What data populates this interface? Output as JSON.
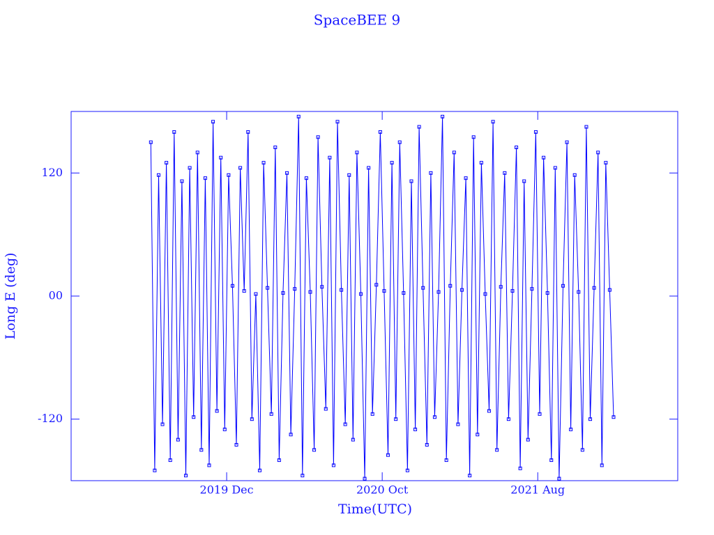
{
  "chart_data": {
    "type": "line",
    "title": "SpaceBEE 9",
    "x_label": "Time(UTC)",
    "y_label": "Long E (deg)",
    "color": "#0000ff",
    "xlim": [
      "2019-02",
      "2022-05"
    ],
    "xticks": [
      {
        "value": "2019-12",
        "label": "2019 Dec"
      },
      {
        "value": "2020-10",
        "label": "2020 Oct"
      },
      {
        "value": "2021-08",
        "label": "2021 Aug"
      }
    ],
    "ylim": [
      -180,
      180
    ],
    "yticks": [
      -120,
      {
        "value": 0,
        "label": "00"
      },
      120
    ],
    "x": [
      "2019-07",
      "2019-07",
      "2019-07",
      "2019-07",
      "2019-08",
      "2019-08",
      "2019-08",
      "2019-08",
      "2019-09",
      "2019-09",
      "2019-09",
      "2019-09",
      "2019-10",
      "2019-10",
      "2019-10",
      "2019-10",
      "2019-11",
      "2019-11",
      "2019-11",
      "2019-11",
      "2019-12",
      "2019-12",
      "2019-12",
      "2019-12",
      "2020-01",
      "2020-01",
      "2020-01",
      "2020-01",
      "2020-02",
      "2020-02",
      "2020-02",
      "2020-02",
      "2020-03",
      "2020-03",
      "2020-03",
      "2020-03",
      "2020-04",
      "2020-04",
      "2020-04",
      "2020-04",
      "2020-05",
      "2020-05",
      "2020-05",
      "2020-05",
      "2020-06",
      "2020-06",
      "2020-06",
      "2020-06",
      "2020-07",
      "2020-07",
      "2020-07",
      "2020-07",
      "2020-08",
      "2020-08",
      "2020-08",
      "2020-08",
      "2020-09",
      "2020-09",
      "2020-09",
      "2020-09",
      "2020-10",
      "2020-10",
      "2020-10",
      "2020-10",
      "2020-11",
      "2020-11",
      "2020-11",
      "2020-11",
      "2020-12",
      "2020-12",
      "2020-12",
      "2020-12",
      "2021-01",
      "2021-01",
      "2021-01",
      "2021-01",
      "2021-02",
      "2021-02",
      "2021-02",
      "2021-02",
      "2021-03",
      "2021-03",
      "2021-03",
      "2021-03",
      "2021-04",
      "2021-04",
      "2021-04",
      "2021-04",
      "2021-05",
      "2021-05",
      "2021-05",
      "2021-05",
      "2021-06",
      "2021-06",
      "2021-06",
      "2021-06",
      "2021-07",
      "2021-07",
      "2021-07",
      "2021-07",
      "2021-08",
      "2021-08",
      "2021-08",
      "2021-08",
      "2021-09",
      "2021-09",
      "2021-09",
      "2021-09",
      "2021-10",
      "2021-10",
      "2021-10",
      "2021-10",
      "2021-11",
      "2021-11",
      "2021-11",
      "2021-11",
      "2021-12",
      "2021-12",
      "2021-12",
      "2021-12"
    ],
    "values": [
      150,
      -170,
      118,
      -125,
      130,
      -160,
      160,
      -140,
      112,
      -175,
      125,
      -118,
      140,
      -150,
      115,
      -165,
      170,
      -112,
      135,
      -130,
      118,
      10,
      -145,
      125,
      5,
      160,
      -120,
      2,
      -170,
      130,
      8,
      -115,
      145,
      -160,
      3,
      120,
      -135,
      7,
      175,
      -175,
      115,
      4,
      -150,
      155,
      9,
      -110,
      135,
      -165,
      170,
      6,
      -125,
      118,
      -140,
      140,
      2,
      -178,
      125,
      -115,
      11,
      160,
      5,
      -155,
      130,
      -120,
      150,
      3,
      -170,
      112,
      -130,
      165,
      8,
      -145,
      120,
      -118,
      4,
      175,
      -160,
      10,
      140,
      -125,
      6,
      115,
      -175,
      155,
      -135,
      130,
      2,
      -112,
      170,
      -150,
      9,
      120,
      -120,
      5,
      145,
      -168,
      112,
      -140,
      7,
      160,
      -115,
      135,
      3,
      -160,
      125,
      -178,
      10,
      150,
      -130,
      118,
      4,
      -150,
      165,
      -120,
      8,
      140,
      -165,
      130,
      6,
      -118
    ]
  }
}
